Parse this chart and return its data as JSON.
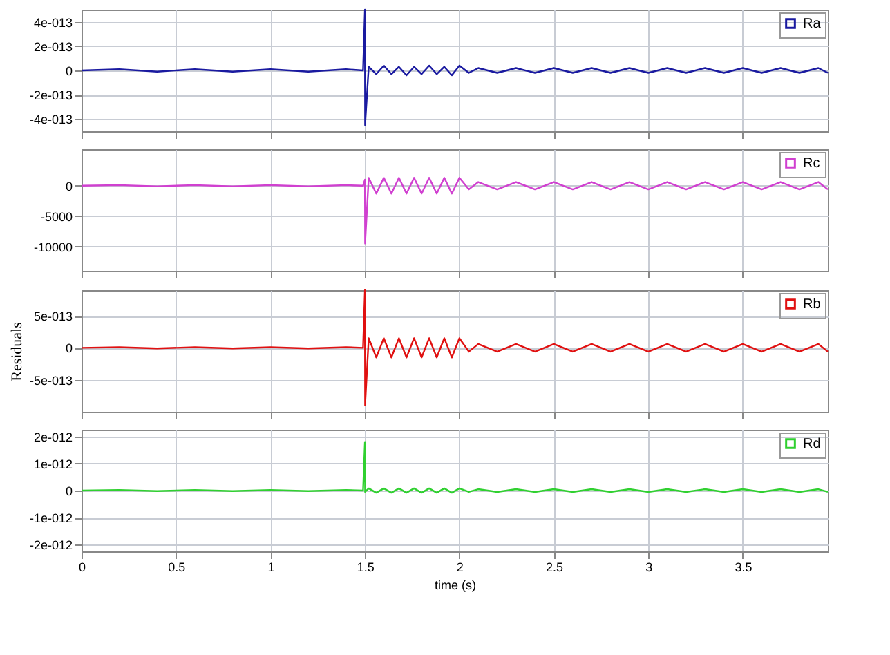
{
  "chart_data": [
    {
      "type": "line",
      "x": [
        0,
        0.2,
        0.4,
        0.6,
        0.8,
        1.0,
        1.2,
        1.4,
        1.49,
        1.5,
        1.501,
        1.52,
        1.56,
        1.6,
        1.64,
        1.68,
        1.72,
        1.76,
        1.8,
        1.84,
        1.88,
        1.92,
        1.96,
        2.0,
        2.05,
        2.1,
        2.2,
        2.3,
        2.4,
        2.5,
        2.6,
        2.7,
        2.8,
        2.9,
        3.0,
        3.1,
        3.2,
        3.3,
        3.4,
        3.5,
        3.6,
        3.7,
        3.8,
        3.9,
        3.95
      ],
      "series": [
        {
          "name": "Ra",
          "color": "#1a1aa0",
          "values": [
            0,
            1e-14,
            -1e-14,
            1e-14,
            -1e-14,
            1e-14,
            -1e-14,
            1e-14,
            0,
            5e-13,
            -4.5e-13,
            3e-14,
            -3e-14,
            4e-14,
            -3e-14,
            3e-14,
            -4e-14,
            3e-14,
            -3e-14,
            4e-14,
            -3e-14,
            3e-14,
            -4e-14,
            4e-14,
            -2e-14,
            2e-14,
            -2e-14,
            2e-14,
            -2e-14,
            2e-14,
            -2e-14,
            2e-14,
            -2e-14,
            2e-14,
            -2e-14,
            2e-14,
            -2e-14,
            2e-14,
            -2e-14,
            2e-14,
            -2e-14,
            2e-14,
            -2e-14,
            2e-14,
            -2e-14
          ]
        }
      ],
      "xlim": [
        0,
        3.95
      ],
      "xticks": [
        0,
        0.5,
        1,
        1.5,
        2,
        2.5,
        3,
        3.5
      ],
      "ylim": [
        -5e-13,
        5e-13
      ],
      "yticks": [
        {
          "value": 4e-13,
          "label": "4e-013"
        },
        {
          "value": 2e-13,
          "label": "2e-013"
        },
        0,
        {
          "value": -2e-13,
          "label": "-2e-013"
        },
        {
          "value": -4e-13,
          "label": "-4e-013"
        }
      ],
      "grid": true,
      "legend": "top right",
      "tick_labels": "y"
    },
    {
      "type": "line",
      "x": [
        0,
        0.2,
        0.4,
        0.6,
        0.8,
        1.0,
        1.2,
        1.4,
        1.49,
        1.5,
        1.501,
        1.52,
        1.56,
        1.6,
        1.64,
        1.68,
        1.72,
        1.76,
        1.8,
        1.84,
        1.88,
        1.92,
        1.96,
        2.0,
        2.05,
        2.1,
        2.2,
        2.3,
        2.4,
        2.5,
        2.6,
        2.7,
        2.8,
        2.9,
        3.0,
        3.1,
        3.2,
        3.3,
        3.4,
        3.5,
        3.6,
        3.7,
        3.8,
        3.9,
        3.95
      ],
      "series": [
        {
          "name": "Rc",
          "color": "#d040d0",
          "values": [
            0,
            100,
            -100,
            100,
            -100,
            100,
            -100,
            100,
            0,
            1000,
            -9500,
            1300,
            -1300,
            1300,
            -1300,
            1300,
            -1300,
            1300,
            -1300,
            1300,
            -1300,
            1300,
            -1300,
            1300,
            -600,
            600,
            -600,
            600,
            -600,
            600,
            -600,
            600,
            -600,
            600,
            -600,
            600,
            -600,
            600,
            -600,
            600,
            -600,
            600,
            -600,
            600,
            -600
          ]
        }
      ],
      "xlim": [
        0,
        3.95
      ],
      "xticks": [
        0,
        0.5,
        1,
        1.5,
        2,
        2.5,
        3,
        3.5
      ],
      "ylim": [
        -14000,
        6000
      ],
      "yticks": [
        0,
        -5000,
        -10000
      ],
      "grid": true,
      "legend": "top right",
      "tick_labels": "y"
    },
    {
      "type": "line",
      "ylabel": "Residuals",
      "x": [
        0,
        0.2,
        0.4,
        0.6,
        0.8,
        1.0,
        1.2,
        1.4,
        1.49,
        1.5,
        1.501,
        1.52,
        1.56,
        1.6,
        1.64,
        1.68,
        1.72,
        1.76,
        1.8,
        1.84,
        1.88,
        1.92,
        1.96,
        2.0,
        2.05,
        2.1,
        2.2,
        2.3,
        2.4,
        2.5,
        2.6,
        2.7,
        2.8,
        2.9,
        3.0,
        3.1,
        3.2,
        3.3,
        3.4,
        3.5,
        3.6,
        3.7,
        3.8,
        3.9,
        3.95
      ],
      "series": [
        {
          "name": "Rb",
          "color": "#e01010",
          "values": [
            0,
            1e-14,
            -1e-14,
            1e-14,
            -1e-14,
            1e-14,
            -1e-14,
            1e-14,
            0,
            9e-13,
            -9e-13,
            1.5e-13,
            -1.5e-13,
            1.5e-13,
            -1.5e-13,
            1.5e-13,
            -1.5e-13,
            1.5e-13,
            -1.5e-13,
            1.5e-13,
            -1.5e-13,
            1.5e-13,
            -1.5e-13,
            1.5e-13,
            -6e-14,
            6e-14,
            -6e-14,
            6e-14,
            -6e-14,
            6e-14,
            -6e-14,
            6e-14,
            -6e-14,
            6e-14,
            -6e-14,
            6e-14,
            -6e-14,
            6e-14,
            -6e-14,
            6e-14,
            -6e-14,
            6e-14,
            -6e-14,
            6e-14,
            -6e-14
          ]
        }
      ],
      "xlim": [
        0,
        3.95
      ],
      "xticks": [
        0,
        0.5,
        1,
        1.5,
        2,
        2.5,
        3,
        3.5
      ],
      "ylim": [
        -1e-12,
        9e-13
      ],
      "yticks": [
        {
          "value": 5e-13,
          "label": "5e-013"
        },
        0,
        {
          "value": -5e-13,
          "label": "-5e-013"
        }
      ],
      "grid": true,
      "legend": "top right",
      "tick_labels": "y"
    },
    {
      "type": "line",
      "xlabel": "time (s)",
      "x": [
        0,
        0.2,
        0.4,
        0.6,
        0.8,
        1.0,
        1.2,
        1.4,
        1.49,
        1.5,
        1.501,
        1.52,
        1.56,
        1.6,
        1.64,
        1.68,
        1.72,
        1.76,
        1.8,
        1.84,
        1.88,
        1.92,
        1.96,
        2.0,
        2.05,
        2.1,
        2.2,
        2.3,
        2.4,
        2.5,
        2.6,
        2.7,
        2.8,
        2.9,
        3.0,
        3.1,
        3.2,
        3.3,
        3.4,
        3.5,
        3.6,
        3.7,
        3.8,
        3.9,
        3.95
      ],
      "series": [
        {
          "name": "Rd",
          "color": "#30d030",
          "values": [
            0,
            2e-14,
            -2e-14,
            2e-14,
            -2e-14,
            2e-14,
            -2e-14,
            2e-14,
            0,
            1.8e-12,
            -5e-14,
            8e-14,
            -8e-14,
            8e-14,
            -8e-14,
            8e-14,
            -8e-14,
            8e-14,
            -8e-14,
            8e-14,
            -8e-14,
            8e-14,
            -8e-14,
            8e-14,
            -5e-14,
            5e-14,
            -5e-14,
            5e-14,
            -5e-14,
            5e-14,
            -5e-14,
            5e-14,
            -5e-14,
            5e-14,
            -5e-14,
            5e-14,
            -5e-14,
            5e-14,
            -5e-14,
            5e-14,
            -5e-14,
            5e-14,
            -5e-14,
            5e-14,
            -5e-14
          ]
        }
      ],
      "xlim": [
        0,
        3.95
      ],
      "xticks": [
        0,
        0.5,
        1,
        1.5,
        2,
        2.5,
        3,
        3.5
      ],
      "ylim": [
        -2.25e-12,
        2.25e-12
      ],
      "yticks": [
        {
          "value": 2e-12,
          "label": "2e-012"
        },
        {
          "value": 1e-12,
          "label": "1e-012"
        },
        0,
        {
          "value": -1e-12,
          "label": "-1e-012"
        },
        {
          "value": -2e-12,
          "label": "-2e-012"
        }
      ],
      "grid": true,
      "legend": "top right"
    }
  ]
}
